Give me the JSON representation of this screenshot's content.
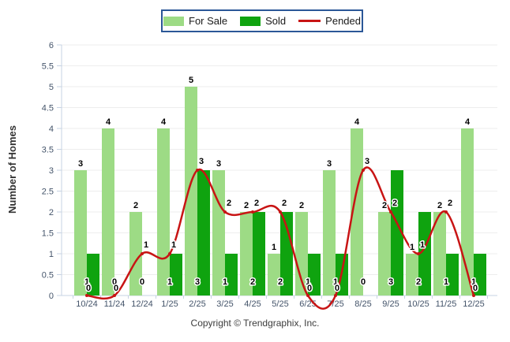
{
  "legend": {
    "for_sale_label": "For Sale",
    "sold_label": "Sold",
    "pended_label": "Pended"
  },
  "y_axis": {
    "title": "Number of Homes",
    "min": 0,
    "max": 6,
    "step": 0.5
  },
  "footer": {
    "copyright": "Copyright © Trendgraphix, Inc."
  },
  "colors": {
    "for_sale": "#9DDB85",
    "sold": "#0FA30F",
    "pended": "#C81414",
    "grid": "#EDEDED",
    "axis": "#C7D3E3",
    "tick_label": "#44546A",
    "value_label": "#000000",
    "legend_border": "#2B5797"
  },
  "chart_data": {
    "type": "bar",
    "title": "",
    "xlabel": "",
    "ylabel": "Number of Homes",
    "ylim": [
      0,
      6
    ],
    "ytick_step": 0.5,
    "grid": true,
    "legend_position": "top",
    "categories": [
      "10/24",
      "11/24",
      "12/24",
      "1/25",
      "2/25",
      "3/25",
      "4/25",
      "5/25",
      "6/25",
      "7/25",
      "8/25",
      "9/25",
      "10/25",
      "11/25",
      "12/25"
    ],
    "series": [
      {
        "name": "For Sale",
        "type": "bar",
        "color": "#9DDB85",
        "values": [
          3,
          4,
          2,
          4,
          5,
          3,
          2,
          1,
          2,
          3,
          4,
          2,
          1,
          2,
          4
        ]
      },
      {
        "name": "Sold",
        "type": "bar",
        "color": "#0FA30F",
        "values": [
          1,
          0,
          0,
          1,
          3,
          1,
          2,
          2,
          1,
          1,
          0,
          3,
          2,
          1,
          1
        ]
      },
      {
        "name": "Pended",
        "type": "line",
        "color": "#C81414",
        "values": [
          0,
          0,
          1,
          1,
          3,
          2,
          2,
          2,
          0,
          0,
          3,
          2,
          1,
          2,
          0
        ]
      }
    ]
  }
}
